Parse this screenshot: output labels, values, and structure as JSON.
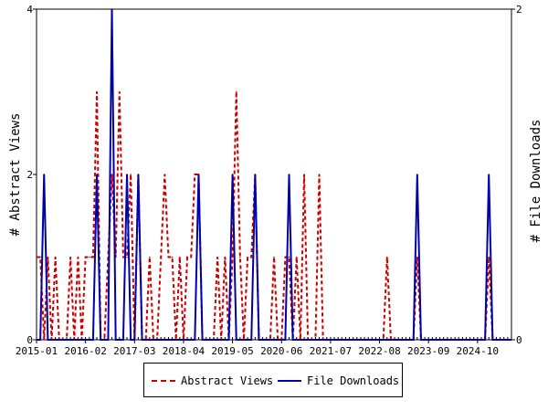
{
  "chart_data": {
    "type": "line",
    "x_tick_labels": [
      "2015-01",
      "2016-02",
      "2017-03",
      "2018-04",
      "2019-05",
      "2020-06",
      "2021-07",
      "2022-08",
      "2023-09",
      "2024-10"
    ],
    "x_range": [
      "2015-01",
      "2025-07"
    ],
    "left_axis": {
      "label": "# Abstract Views",
      "ylim": [
        0,
        4
      ],
      "ticks": [
        0,
        2,
        4
      ]
    },
    "right_axis": {
      "label": "# File Downloads",
      "ylim": [
        0,
        2
      ],
      "ticks": [
        0,
        2
      ]
    },
    "grid": false,
    "legend": "bottom",
    "colors": {
      "abstract_views": "#cc0000",
      "file_downloads": "#0000aa"
    },
    "series": [
      {
        "name": "Abstract Views",
        "axis": "left",
        "style": "dashed",
        "points": [
          [
            "2015-01",
            1
          ],
          [
            "2015-02",
            1
          ],
          [
            "2015-03",
            0
          ],
          [
            "2015-04",
            1
          ],
          [
            "2015-05",
            0
          ],
          [
            "2015-06",
            1
          ],
          [
            "2015-07",
            0
          ],
          [
            "2015-08",
            0
          ],
          [
            "2015-09",
            0
          ],
          [
            "2015-10",
            1
          ],
          [
            "2015-11",
            0
          ],
          [
            "2015-12",
            1
          ],
          [
            "2016-01",
            0
          ],
          [
            "2016-02",
            1
          ],
          [
            "2016-03",
            1
          ],
          [
            "2016-04",
            1
          ],
          [
            "2016-05",
            3
          ],
          [
            "2016-06",
            0
          ],
          [
            "2016-07",
            0
          ],
          [
            "2016-08",
            1
          ],
          [
            "2016-09",
            2
          ],
          [
            "2016-10",
            1
          ],
          [
            "2016-11",
            3
          ],
          [
            "2016-12",
            1
          ],
          [
            "2017-01",
            1
          ],
          [
            "2017-02",
            2
          ],
          [
            "2017-03",
            0
          ],
          [
            "2017-04",
            2
          ],
          [
            "2017-05",
            0
          ],
          [
            "2017-06",
            0
          ],
          [
            "2017-07",
            1
          ],
          [
            "2017-08",
            0
          ],
          [
            "2017-09",
            0
          ],
          [
            "2017-10",
            1
          ],
          [
            "2017-11",
            2
          ],
          [
            "2017-12",
            1
          ],
          [
            "2018-01",
            1
          ],
          [
            "2018-02",
            0
          ],
          [
            "2018-03",
            1
          ],
          [
            "2018-04",
            0
          ],
          [
            "2018-05",
            1
          ],
          [
            "2018-06",
            1
          ],
          [
            "2018-07",
            2
          ],
          [
            "2018-08",
            2
          ],
          [
            "2018-09",
            0
          ],
          [
            "2018-10",
            0
          ],
          [
            "2018-11",
            0
          ],
          [
            "2018-12",
            0
          ],
          [
            "2019-01",
            1
          ],
          [
            "2019-02",
            0
          ],
          [
            "2019-03",
            1
          ],
          [
            "2019-04",
            0
          ],
          [
            "2019-05",
            1
          ],
          [
            "2019-06",
            3
          ],
          [
            "2019-07",
            1
          ],
          [
            "2019-08",
            0
          ],
          [
            "2019-09",
            1
          ],
          [
            "2019-10",
            1
          ],
          [
            "2019-11",
            2
          ],
          [
            "2019-12",
            0
          ],
          [
            "2020-01",
            0
          ],
          [
            "2020-02",
            0
          ],
          [
            "2020-03",
            0
          ],
          [
            "2020-04",
            1
          ],
          [
            "2020-05",
            0
          ],
          [
            "2020-06",
            0
          ],
          [
            "2020-07",
            1
          ],
          [
            "2020-08",
            1
          ],
          [
            "2020-09",
            0
          ],
          [
            "2020-10",
            1
          ],
          [
            "2020-11",
            0
          ],
          [
            "2020-12",
            2
          ],
          [
            "2021-01",
            0
          ],
          [
            "2021-02",
            0
          ],
          [
            "2021-03",
            0
          ],
          [
            "2021-04",
            2
          ],
          [
            "2021-05",
            0
          ],
          [
            "2021-06",
            0
          ],
          [
            "2021-07",
            0
          ],
          [
            "2021-08",
            0
          ],
          [
            "2021-09",
            0
          ],
          [
            "2021-10",
            0
          ],
          [
            "2021-11",
            0
          ],
          [
            "2021-12",
            0
          ],
          [
            "2022-01",
            0
          ],
          [
            "2022-02",
            0
          ],
          [
            "2022-03",
            0
          ],
          [
            "2022-04",
            0
          ],
          [
            "2022-05",
            0
          ],
          [
            "2022-06",
            0
          ],
          [
            "2022-07",
            0
          ],
          [
            "2022-08",
            0
          ],
          [
            "2022-09",
            0
          ],
          [
            "2022-10",
            1
          ],
          [
            "2022-11",
            0
          ],
          [
            "2022-12",
            0
          ],
          [
            "2023-01",
            0
          ],
          [
            "2023-02",
            0
          ],
          [
            "2023-03",
            0
          ],
          [
            "2023-04",
            0
          ],
          [
            "2023-05",
            0
          ],
          [
            "2023-06",
            1
          ],
          [
            "2023-07",
            0
          ],
          [
            "2023-08",
            0
          ],
          [
            "2023-09",
            0
          ],
          [
            "2023-10",
            0
          ],
          [
            "2023-11",
            0
          ],
          [
            "2023-12",
            0
          ],
          [
            "2024-01",
            0
          ],
          [
            "2024-02",
            0
          ],
          [
            "2024-03",
            0
          ],
          [
            "2024-04",
            0
          ],
          [
            "2024-05",
            0
          ],
          [
            "2024-06",
            0
          ],
          [
            "2024-07",
            0
          ],
          [
            "2024-08",
            0
          ],
          [
            "2024-09",
            0
          ],
          [
            "2024-10",
            0
          ],
          [
            "2024-11",
            0
          ],
          [
            "2024-12",
            0
          ],
          [
            "2025-01",
            1
          ],
          [
            "2025-02",
            0
          ],
          [
            "2025-03",
            0
          ],
          [
            "2025-04",
            0
          ],
          [
            "2025-05",
            0
          ],
          [
            "2025-06",
            0
          ],
          [
            "2025-07",
            0
          ]
        ]
      },
      {
        "name": "File Downloads",
        "axis": "right",
        "style": "solid",
        "points": [
          [
            "2015-01",
            0
          ],
          [
            "2015-02",
            0
          ],
          [
            "2015-03",
            1
          ],
          [
            "2015-04",
            0
          ],
          [
            "2015-05",
            0
          ],
          [
            "2015-06",
            0
          ],
          [
            "2015-07",
            0
          ],
          [
            "2015-08",
            0
          ],
          [
            "2015-09",
            0
          ],
          [
            "2015-10",
            0
          ],
          [
            "2015-11",
            0
          ],
          [
            "2015-12",
            0
          ],
          [
            "2016-01",
            0
          ],
          [
            "2016-02",
            0
          ],
          [
            "2016-03",
            0
          ],
          [
            "2016-04",
            0
          ],
          [
            "2016-05",
            1
          ],
          [
            "2016-06",
            0
          ],
          [
            "2016-07",
            0
          ],
          [
            "2016-08",
            0
          ],
          [
            "2016-09",
            2
          ],
          [
            "2016-10",
            0
          ],
          [
            "2016-11",
            0
          ],
          [
            "2016-12",
            0
          ],
          [
            "2017-01",
            1
          ],
          [
            "2017-02",
            0
          ],
          [
            "2017-03",
            0
          ],
          [
            "2017-04",
            1
          ],
          [
            "2017-05",
            0
          ],
          [
            "2017-06",
            0
          ],
          [
            "2017-07",
            0
          ],
          [
            "2017-08",
            0
          ],
          [
            "2017-09",
            0
          ],
          [
            "2017-10",
            0
          ],
          [
            "2017-11",
            0
          ],
          [
            "2017-12",
            0
          ],
          [
            "2018-01",
            0
          ],
          [
            "2018-02",
            0
          ],
          [
            "2018-03",
            0
          ],
          [
            "2018-04",
            0
          ],
          [
            "2018-05",
            0
          ],
          [
            "2018-06",
            0
          ],
          [
            "2018-07",
            0
          ],
          [
            "2018-08",
            1
          ],
          [
            "2018-09",
            0
          ],
          [
            "2018-10",
            0
          ],
          [
            "2018-11",
            0
          ],
          [
            "2018-12",
            0
          ],
          [
            "2019-01",
            0
          ],
          [
            "2019-02",
            0
          ],
          [
            "2019-03",
            0
          ],
          [
            "2019-04",
            0
          ],
          [
            "2019-05",
            1
          ],
          [
            "2019-06",
            0
          ],
          [
            "2019-07",
            0
          ],
          [
            "2019-08",
            0
          ],
          [
            "2019-09",
            0
          ],
          [
            "2019-10",
            0
          ],
          [
            "2019-11",
            1
          ],
          [
            "2019-12",
            0
          ],
          [
            "2020-01",
            0
          ],
          [
            "2020-02",
            0
          ],
          [
            "2020-03",
            0
          ],
          [
            "2020-04",
            0
          ],
          [
            "2020-05",
            0
          ],
          [
            "2020-06",
            0
          ],
          [
            "2020-07",
            0
          ],
          [
            "2020-08",
            1
          ],
          [
            "2020-09",
            0
          ],
          [
            "2020-10",
            0
          ],
          [
            "2020-11",
            0
          ],
          [
            "2020-12",
            0
          ],
          [
            "2021-01",
            0
          ],
          [
            "2021-02",
            0
          ],
          [
            "2021-03",
            0
          ],
          [
            "2021-04",
            0
          ],
          [
            "2021-05",
            0
          ],
          [
            "2021-06",
            0
          ],
          [
            "2021-07",
            0
          ],
          [
            "2021-08",
            0
          ],
          [
            "2021-09",
            0
          ],
          [
            "2021-10",
            0
          ],
          [
            "2021-11",
            0
          ],
          [
            "2021-12",
            0
          ],
          [
            "2022-01",
            0
          ],
          [
            "2022-02",
            0
          ],
          [
            "2022-03",
            0
          ],
          [
            "2022-04",
            0
          ],
          [
            "2022-05",
            0
          ],
          [
            "2022-06",
            0
          ],
          [
            "2022-07",
            0
          ],
          [
            "2022-08",
            0
          ],
          [
            "2022-09",
            0
          ],
          [
            "2022-10",
            0
          ],
          [
            "2022-11",
            0
          ],
          [
            "2022-12",
            0
          ],
          [
            "2023-01",
            0
          ],
          [
            "2023-02",
            0
          ],
          [
            "2023-03",
            0
          ],
          [
            "2023-04",
            0
          ],
          [
            "2023-05",
            0
          ],
          [
            "2023-06",
            1
          ],
          [
            "2023-07",
            0
          ],
          [
            "2023-08",
            0
          ],
          [
            "2023-09",
            0
          ],
          [
            "2023-10",
            0
          ],
          [
            "2023-11",
            0
          ],
          [
            "2023-12",
            0
          ],
          [
            "2024-01",
            0
          ],
          [
            "2024-02",
            0
          ],
          [
            "2024-03",
            0
          ],
          [
            "2024-04",
            0
          ],
          [
            "2024-05",
            0
          ],
          [
            "2024-06",
            0
          ],
          [
            "2024-07",
            0
          ],
          [
            "2024-08",
            0
          ],
          [
            "2024-09",
            0
          ],
          [
            "2024-10",
            0
          ],
          [
            "2024-11",
            0
          ],
          [
            "2024-12",
            0
          ],
          [
            "2025-01",
            1
          ],
          [
            "2025-02",
            0
          ],
          [
            "2025-03",
            0
          ],
          [
            "2025-04",
            0
          ],
          [
            "2025-05",
            0
          ],
          [
            "2025-06",
            0
          ],
          [
            "2025-07",
            0
          ]
        ]
      }
    ]
  }
}
